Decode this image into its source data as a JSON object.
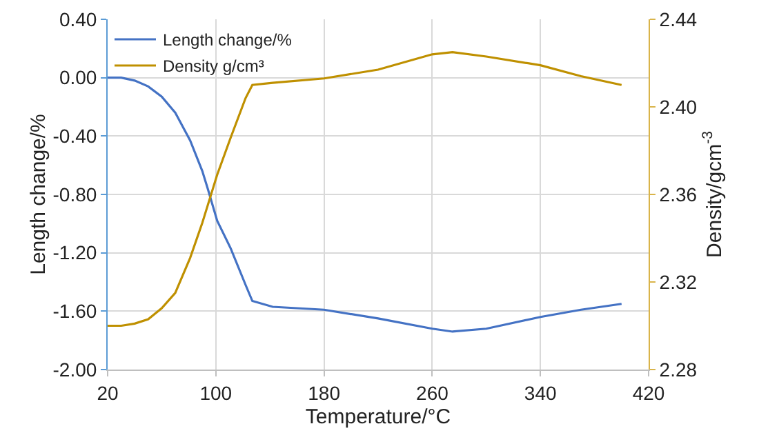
{
  "chart_data": {
    "type": "line",
    "xlabel": "Temperature/°C",
    "ylabel": "Length change/%",
    "y2label": "Density/gcm$^{-3}$",
    "x": [
      20,
      30,
      40,
      50,
      60,
      70,
      81,
      90,
      94,
      101,
      111,
      122,
      127,
      142,
      180,
      220,
      260,
      275,
      300,
      340,
      370,
      400
    ],
    "series": [
      {
        "name": "Length change/%",
        "color": "#4472c4",
        "values": [
          0.0,
          0.0,
          -0.02,
          -0.06,
          -0.13,
          -0.24,
          -0.43,
          -0.64,
          -0.76,
          -0.98,
          -1.17,
          -1.42,
          -1.53,
          -1.57,
          -1.59,
          -1.65,
          -1.72,
          -1.74,
          -1.72,
          -1.64,
          -1.59,
          -1.55
        ]
      },
      {
        "name": "Density g/cm³",
        "color": "#bf9000",
        "axis": "y2",
        "values": [
          2.3,
          2.3,
          2.301,
          2.303,
          2.308,
          2.315,
          2.331,
          2.347,
          2.355,
          2.369,
          2.386,
          2.404,
          2.41,
          2.411,
          2.413,
          2.417,
          2.424,
          2.425,
          2.423,
          2.419,
          2.414,
          2.41
        ]
      }
    ],
    "xlim": [
      20,
      420
    ],
    "xticks": [
      20,
      100,
      180,
      260,
      340,
      420
    ],
    "ylim": [
      -2,
      0.4
    ],
    "yticks": [
      {
        "value": 0.4,
        "label": "0.40"
      },
      {
        "value": 0,
        "label": "0.00"
      },
      {
        "value": -0.4,
        "label": "-0.40"
      },
      {
        "value": -0.8,
        "label": "-0.80"
      },
      {
        "value": -1.2,
        "label": "-1.20"
      },
      {
        "value": -1.6,
        "label": "-1.60"
      },
      {
        "value": -2,
        "label": "-2.00"
      }
    ],
    "y2lim": [
      2.28,
      2.44
    ],
    "y2ticks": [
      2.28,
      2.32,
      2.36,
      {
        "value": 2.4,
        "label": "2.40"
      },
      2.44
    ],
    "grid": true,
    "legend": "top left",
    "marker": "none",
    "line_style": "solid"
  }
}
